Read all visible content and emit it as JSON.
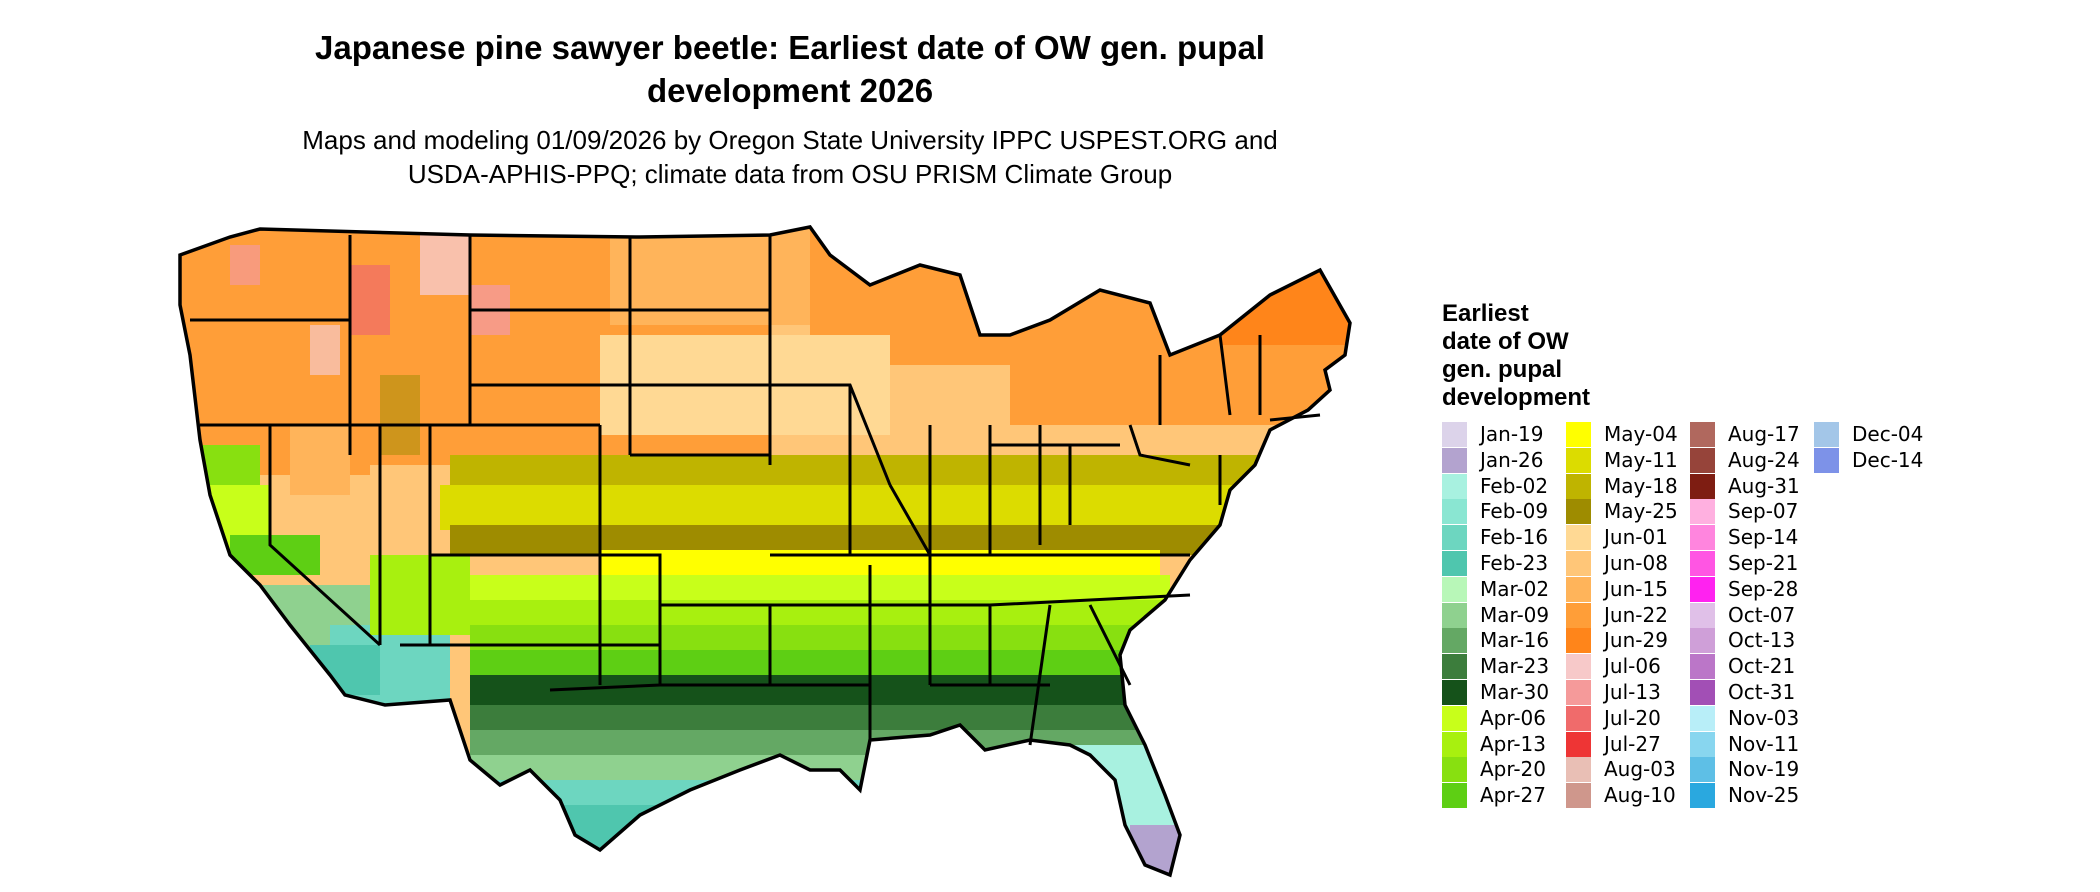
{
  "title_line1": "Japanese pine sawyer beetle: Earliest date of OW gen. pupal",
  "title_line2": "development 2026",
  "subtitle_line1": "Maps and modeling 01/09/2026 by Oregon State University IPPC USPEST.ORG and",
  "subtitle_line2": "USDA-APHIS-PPQ; climate data from OSU PRISM Climate Group",
  "legend": {
    "title_lines": [
      "Earliest",
      "date of OW",
      "gen. pupal",
      "development"
    ],
    "items": [
      {
        "label": "Jan-19",
        "color": "#dcd3ea"
      },
      {
        "label": "Jan-26",
        "color": "#b3a3cf"
      },
      {
        "label": "Feb-02",
        "color": "#a8f1e0"
      },
      {
        "label": "Feb-09",
        "color": "#8ae6d2"
      },
      {
        "label": "Feb-16",
        "color": "#6dd6c0"
      },
      {
        "label": "Feb-23",
        "color": "#4fc6ae"
      },
      {
        "label": "Mar-02",
        "color": "#b8f7b8"
      },
      {
        "label": "Mar-09",
        "color": "#8fd18f"
      },
      {
        "label": "Mar-16",
        "color": "#64a864"
      },
      {
        "label": "Mar-23",
        "color": "#3c7d3c"
      },
      {
        "label": "Mar-30",
        "color": "#15521a"
      },
      {
        "label": "Apr-06",
        "color": "#c8ff1a"
      },
      {
        "label": "Apr-13",
        "color": "#a8f00f"
      },
      {
        "label": "Apr-20",
        "color": "#88e010"
      },
      {
        "label": "Apr-27",
        "color": "#5ecf14"
      },
      {
        "label": "May-04",
        "color": "#ffff00"
      },
      {
        "label": "May-11",
        "color": "#dcdc00"
      },
      {
        "label": "May-18",
        "color": "#bfb400"
      },
      {
        "label": "May-25",
        "color": "#9e8c00"
      },
      {
        "label": "Jun-01",
        "color": "#ffd994"
      },
      {
        "label": "Jun-08",
        "color": "#ffc678"
      },
      {
        "label": "Jun-15",
        "color": "#ffb45a"
      },
      {
        "label": "Jun-22",
        "color": "#ff9e38"
      },
      {
        "label": "Jun-29",
        "color": "#ff851a"
      },
      {
        "label": "Jul-06",
        "color": "#f7c9c9"
      },
      {
        "label": "Jul-13",
        "color": "#f59a9a"
      },
      {
        "label": "Jul-20",
        "color": "#f06b6b"
      },
      {
        "label": "Jul-27",
        "color": "#ee3535"
      },
      {
        "label": "Aug-03",
        "color": "#e9bfb5"
      },
      {
        "label": "Aug-10",
        "color": "#cf978c"
      },
      {
        "label": "Aug-17",
        "color": "#b0685e"
      },
      {
        "label": "Aug-24",
        "color": "#96443a"
      },
      {
        "label": "Aug-31",
        "color": "#7e1d12"
      },
      {
        "label": "Sep-07",
        "color": "#ffb0e0"
      },
      {
        "label": "Sep-14",
        "color": "#ff85de"
      },
      {
        "label": "Sep-21",
        "color": "#ff55e3"
      },
      {
        "label": "Sep-28",
        "color": "#ff22f0"
      },
      {
        "label": "Oct-07",
        "color": "#e0c0e8"
      },
      {
        "label": "Oct-13",
        "color": "#cf9fd8"
      },
      {
        "label": "Oct-21",
        "color": "#bb76c8"
      },
      {
        "label": "Oct-31",
        "color": "#a24fb5"
      },
      {
        "label": "Nov-03",
        "color": "#b8eef8"
      },
      {
        "label": "Nov-11",
        "color": "#88d6ef"
      },
      {
        "label": "Nov-19",
        "color": "#5ebfe6"
      },
      {
        "label": "Nov-25",
        "color": "#2aa8df"
      },
      {
        "label": "Dec-04",
        "color": "#a3c6e8"
      },
      {
        "label": "Dec-14",
        "color": "#7d92e8"
      }
    ]
  }
}
